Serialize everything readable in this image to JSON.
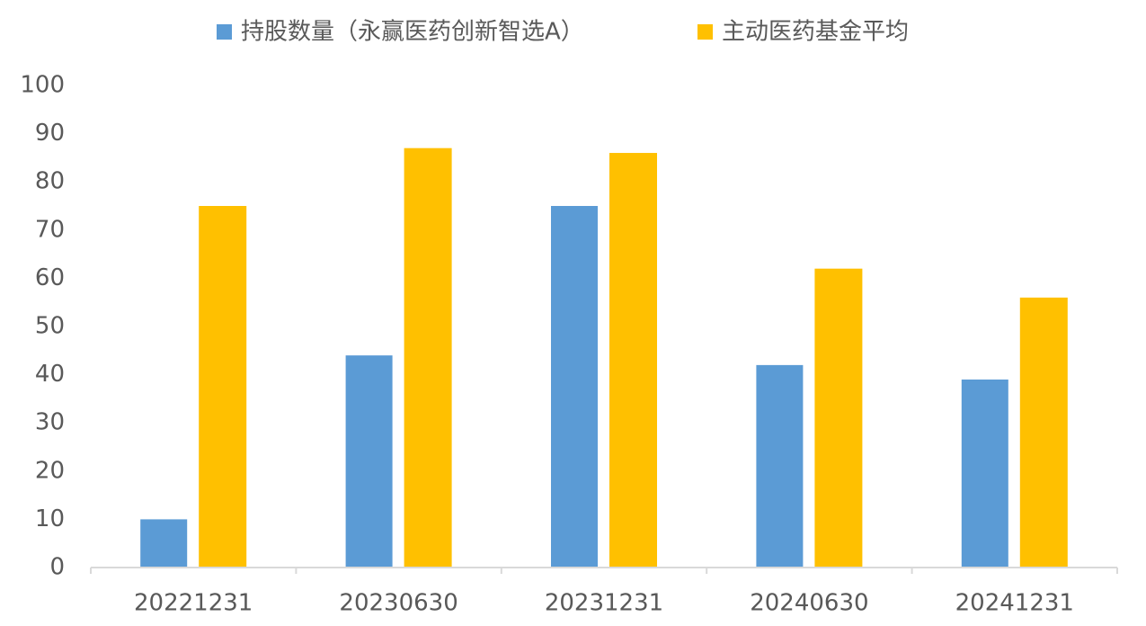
{
  "chart_data": {
    "type": "bar",
    "categories": [
      "20221231",
      "20230630",
      "20231231",
      "20240630",
      "20241231"
    ],
    "series": [
      {
        "name": "持股数量（永赢医药创新智选A）",
        "color": "#5b9bd5",
        "values": [
          10,
          44,
          75,
          42,
          39
        ]
      },
      {
        "name": "主动医药基金平均",
        "color": "#ffc000",
        "values": [
          75,
          87,
          86,
          62,
          56
        ]
      }
    ],
    "ylim": [
      0,
      100
    ],
    "yticks": [
      0,
      10,
      20,
      30,
      40,
      50,
      60,
      70,
      80,
      90,
      100
    ],
    "grid": false,
    "legend": "top"
  }
}
